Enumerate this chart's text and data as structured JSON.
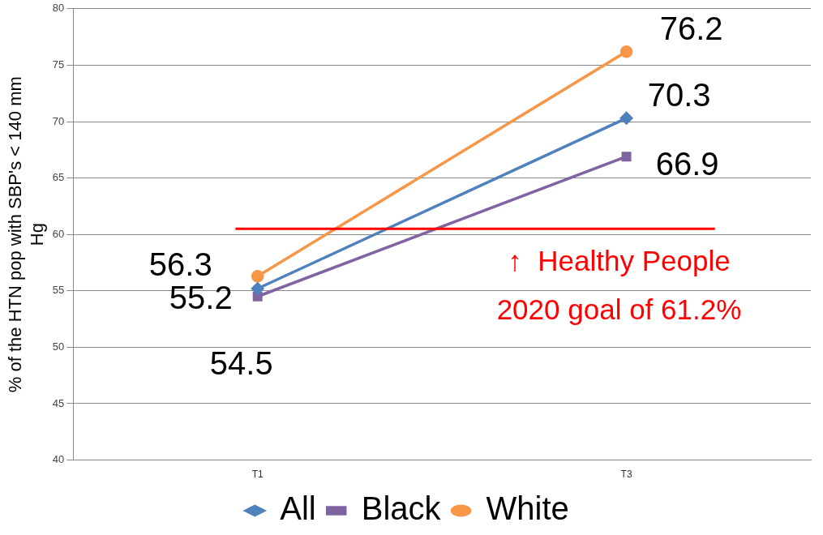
{
  "chart_data": {
    "type": "line",
    "ylabel": "% of the HTN pop with SBP's < 140 mm Hg",
    "categories": [
      "T1",
      "T3"
    ],
    "series": [
      {
        "name": "All",
        "color": "#4f81bd",
        "marker": "diamond",
        "values": [
          55.2,
          70.3
        ]
      },
      {
        "name": "Black",
        "color": "#8064a2",
        "marker": "square",
        "values": [
          54.5,
          66.9
        ]
      },
      {
        "name": "White",
        "color": "#f79646",
        "marker": "circle",
        "values": [
          56.3,
          76.2
        ]
      }
    ],
    "ylim": [
      40,
      80
    ],
    "yticks": [
      40,
      45,
      50,
      55,
      60,
      65,
      70,
      75,
      80
    ],
    "grid": "y",
    "legend": "bottom",
    "data_labels": true,
    "ref_lines": [
      {
        "axis": "y",
        "value": 60.5,
        "color": "#ff0000"
      }
    ],
    "annotations": [
      "↑  Healthy People",
      "2020 goal of 61.2%"
    ]
  }
}
